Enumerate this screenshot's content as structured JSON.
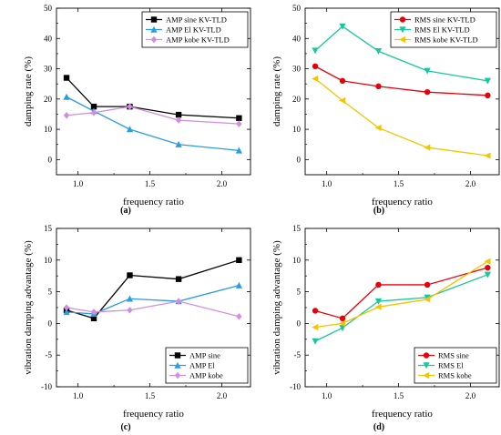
{
  "chart_data": [
    {
      "type": "line",
      "panel_label": "(a)",
      "xlabel": "frequency ratio",
      "ylabel": "damping rate (%)",
      "xlim": [
        0.85,
        2.2
      ],
      "ylim": [
        -5,
        50
      ],
      "xticks": [
        1.0,
        1.5,
        2.0
      ],
      "xtick_labels": [
        "1.0",
        "1.5",
        "2.0"
      ],
      "yticks": [
        0,
        10,
        20,
        30,
        40,
        50
      ],
      "ytick_labels": [
        "0",
        "10",
        "20",
        "30",
        "40",
        "50"
      ],
      "legend_position": "top-right",
      "series": [
        {
          "name": "AMP sine KV-TLD",
          "color": "#000000",
          "marker": "square",
          "x": [
            0.92,
            1.11,
            1.36,
            1.7,
            2.12
          ],
          "y": [
            27.0,
            17.5,
            17.5,
            14.8,
            13.7
          ]
        },
        {
          "name": "AMP El KV-TLD",
          "color": "#2b9ce0",
          "marker": "triangle-up",
          "x": [
            0.92,
            1.11,
            1.36,
            1.7,
            2.12
          ],
          "y": [
            20.7,
            16.0,
            10.0,
            5.0,
            3.0
          ]
        },
        {
          "name": "AMP kobe KV-TLD",
          "color": "#d08ee0",
          "marker": "diamond",
          "x": [
            0.92,
            1.11,
            1.36,
            1.7,
            2.12
          ],
          "y": [
            14.6,
            15.5,
            17.5,
            13.0,
            11.8
          ]
        }
      ]
    },
    {
      "type": "line",
      "panel_label": "(b)",
      "xlabel": "frequency ratio",
      "ylabel": "damping rate (%)",
      "xlim": [
        0.85,
        2.2
      ],
      "ylim": [
        -5,
        50
      ],
      "xticks": [
        1.0,
        1.5,
        2.0
      ],
      "xtick_labels": [
        "1.0",
        "1.5",
        "2.0"
      ],
      "yticks": [
        0,
        10,
        20,
        30,
        40,
        50
      ],
      "ytick_labels": [
        "0",
        "10",
        "20",
        "30",
        "40",
        "50"
      ],
      "legend_position": "top-right",
      "series": [
        {
          "name": "RMS sine KV-TLD",
          "color": "#e8000b",
          "marker": "circle",
          "x": [
            0.92,
            1.11,
            1.36,
            1.7,
            2.12
          ],
          "y": [
            30.8,
            26.0,
            24.2,
            22.3,
            21.2
          ]
        },
        {
          "name": "RMS El KV-TLD",
          "color": "#16c89a",
          "marker": "triangle-down",
          "x": [
            0.92,
            1.11,
            1.36,
            1.7,
            2.12
          ],
          "y": [
            36.0,
            44.0,
            35.8,
            29.3,
            26.0
          ]
        },
        {
          "name": "RMS kobe KV-TLD",
          "color": "#f5c400",
          "marker": "triangle-left",
          "x": [
            0.92,
            1.11,
            1.36,
            1.7,
            2.12
          ],
          "y": [
            26.7,
            19.5,
            10.5,
            4.0,
            1.3
          ]
        }
      ]
    },
    {
      "type": "line",
      "panel_label": "(c)",
      "xlabel": "frequency ratio",
      "ylabel": "vibration damping advantage (%)",
      "xlim": [
        0.85,
        2.2
      ],
      "ylim": [
        -10,
        15
      ],
      "xticks": [
        1.0,
        1.5,
        2.0
      ],
      "xtick_labels": [
        "1.0",
        "1.5",
        "2.0"
      ],
      "yticks": [
        -10,
        -5,
        0,
        5,
        10,
        15
      ],
      "ytick_labels": [
        "-10",
        "-5",
        "0",
        "5",
        "10",
        "15"
      ],
      "legend_position": "bottom-right",
      "series": [
        {
          "name": "AMP sine",
          "color": "#000000",
          "marker": "square",
          "x": [
            0.92,
            1.11,
            1.36,
            1.7,
            2.12
          ],
          "y": [
            2.1,
            0.8,
            7.6,
            7.0,
            10.0
          ]
        },
        {
          "name": "AMP El",
          "color": "#2b9ce0",
          "marker": "triangle-up",
          "x": [
            0.92,
            1.11,
            1.36,
            1.7,
            2.12
          ],
          "y": [
            1.8,
            1.5,
            3.9,
            3.5,
            6.0
          ]
        },
        {
          "name": "AMP kobe",
          "color": "#d08ee0",
          "marker": "diamond",
          "x": [
            0.92,
            1.11,
            1.36,
            1.7,
            2.12
          ],
          "y": [
            2.5,
            1.8,
            2.1,
            3.5,
            1.1
          ]
        }
      ]
    },
    {
      "type": "line",
      "panel_label": "(d)",
      "xlabel": "frequency ratio",
      "ylabel": "vibration damping advantage (%)",
      "xlim": [
        0.85,
        2.2
      ],
      "ylim": [
        -10,
        15
      ],
      "xticks": [
        1.0,
        1.5,
        2.0
      ],
      "xtick_labels": [
        "1.0",
        "1.5",
        "2.0"
      ],
      "yticks": [
        -10,
        -5,
        0,
        5,
        10,
        15
      ],
      "ytick_labels": [
        "-10",
        "-5",
        "0",
        "5",
        "10",
        "15"
      ],
      "legend_position": "bottom-right",
      "series": [
        {
          "name": "RMS sine",
          "color": "#e8000b",
          "marker": "circle",
          "x": [
            0.92,
            1.11,
            1.36,
            1.7,
            2.12
          ],
          "y": [
            2.0,
            0.8,
            6.1,
            6.1,
            8.8
          ]
        },
        {
          "name": "RMS El",
          "color": "#16c89a",
          "marker": "triangle-down",
          "x": [
            0.92,
            1.11,
            1.36,
            1.7,
            2.12
          ],
          "y": [
            -2.8,
            -0.7,
            3.5,
            4.1,
            7.7
          ]
        },
        {
          "name": "RMS kobe",
          "color": "#f5c400",
          "marker": "triangle-left",
          "x": [
            0.92,
            1.11,
            1.36,
            1.7,
            2.12
          ],
          "y": [
            -0.6,
            0.0,
            2.6,
            3.8,
            9.8
          ]
        }
      ]
    }
  ]
}
